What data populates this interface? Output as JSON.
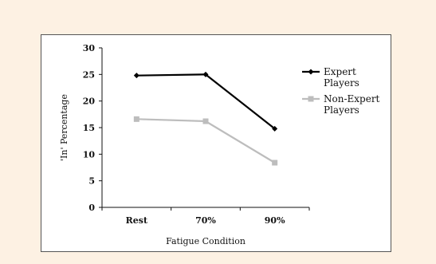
{
  "chart_data": {
    "type": "line",
    "categories": [
      "Rest",
      "70%",
      "90%"
    ],
    "series": [
      {
        "name": "Expert Players",
        "values": [
          24.8,
          25.0,
          14.8
        ],
        "color": "#000000",
        "marker": "diamond"
      },
      {
        "name": "Non-Expert Players",
        "values": [
          16.6,
          16.2,
          8.4
        ],
        "color": "#bdbdbd",
        "marker": "square"
      }
    ],
    "ylim": [
      0,
      30
    ],
    "yticks": [
      0,
      5,
      10,
      15,
      20,
      25,
      30
    ],
    "xlabel": "Fatigue Condition",
    "ylabel": "'In' Percentage",
    "legend_position": "right",
    "grid": false
  }
}
